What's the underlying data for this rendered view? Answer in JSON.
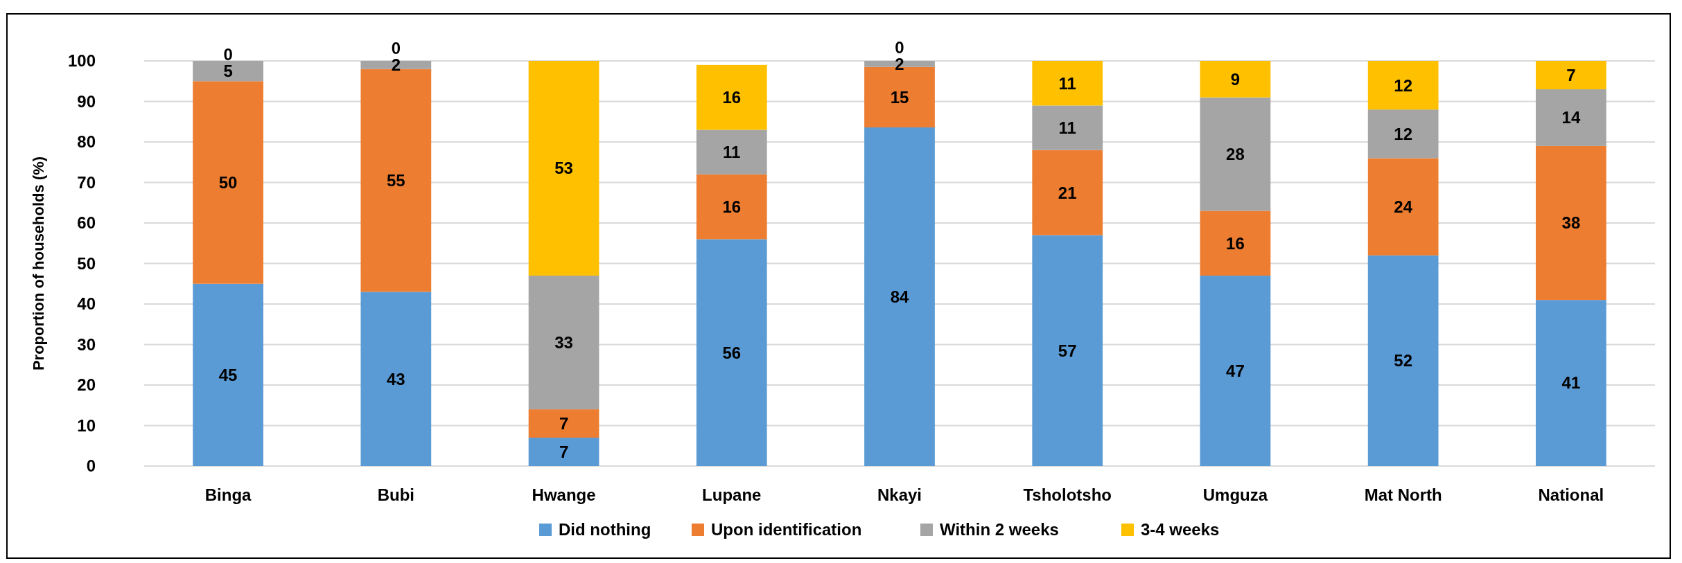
{
  "chart_data": {
    "type": "bar",
    "stacked": true,
    "ylabel": "Proportion of households (%)",
    "categories": [
      "Binga",
      "Bubi",
      "Hwange",
      "Lupane",
      "Nkayi",
      "Tsholotsho",
      "Umguza",
      "Mat North",
      "National"
    ],
    "series": [
      {
        "name": "Did nothing",
        "color": "#5b9bd5",
        "values": [
          45,
          43,
          7,
          56,
          83.6,
          57,
          47,
          52,
          41
        ],
        "value_labels": [
          "45",
          "43",
          "7",
          "56",
          "84",
          "57",
          "47",
          "52",
          "41"
        ]
      },
      {
        "name": "Upon identification",
        "color": "#ed7d31",
        "values": [
          50,
          55,
          7,
          16,
          14.9,
          21,
          16,
          24,
          38
        ],
        "value_labels": [
          "50",
          "55",
          "7",
          "16",
          "15",
          "21",
          "16",
          "24",
          "38"
        ]
      },
      {
        "name": "Within 2 weeks",
        "color": "#a5a5a5",
        "values": [
          5,
          2,
          33,
          11,
          1.5,
          11,
          28,
          12,
          14
        ],
        "value_labels": [
          "5",
          "2",
          "33",
          "11",
          "2",
          "11",
          "28",
          "12",
          "14"
        ]
      },
      {
        "name": "3-4 weeks",
        "color": "#ffc000",
        "values": [
          0,
          0,
          53,
          16,
          0,
          11,
          9,
          12,
          7
        ],
        "value_labels": [
          "0",
          "0",
          "53",
          "16",
          "0",
          "11",
          "9",
          "12",
          "7"
        ]
      }
    ],
    "ylim": [
      0,
      100
    ],
    "yticks": [
      0,
      10,
      20,
      30,
      40,
      50,
      60,
      70,
      80,
      90,
      100
    ],
    "grid": "y",
    "legend": "bottom"
  }
}
